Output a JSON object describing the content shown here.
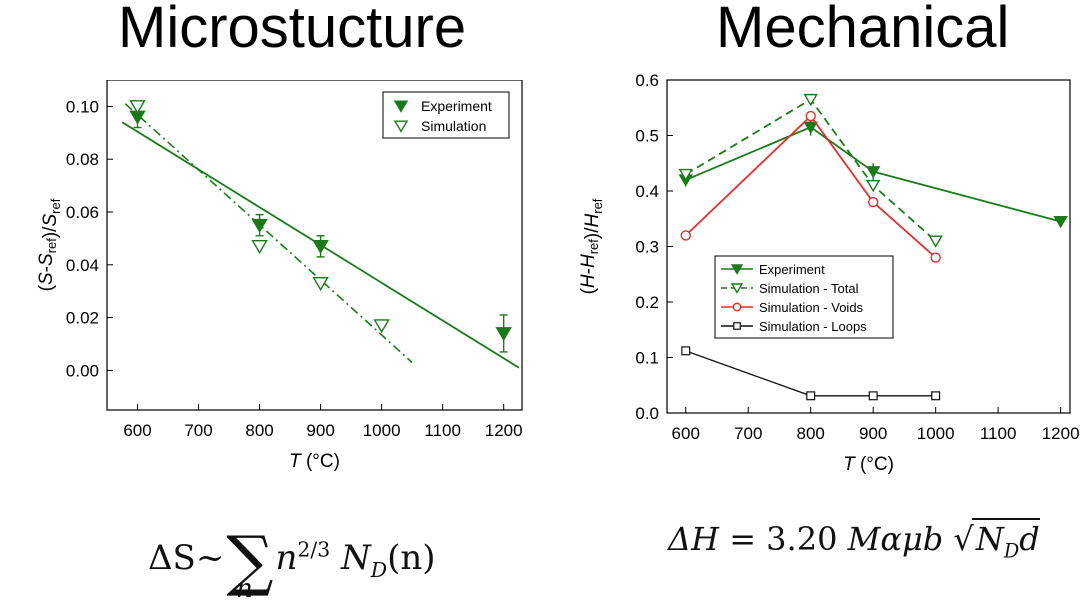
{
  "panels": {
    "left_title": "Microstucture",
    "right_title": "Mechanical"
  },
  "equations": {
    "left": {
      "lhs": "ΔS",
      "sym": "~",
      "sigma": "∑",
      "index": "n",
      "body_n": "n",
      "exp": "2/3",
      "N": "N",
      "sub": "D",
      "arg": "(n)"
    },
    "right": {
      "lhs": "ΔH",
      "eq": "=",
      "coef": "3.20",
      "vars": "Mαμb",
      "root": "√",
      "N": "N",
      "sub": "D",
      "d": "d"
    }
  },
  "colors": {
    "green": "#1a7a1a",
    "red": "#e03030",
    "black": "#111111"
  },
  "chart_data": [
    {
      "type": "scatter",
      "title": "Microstucture",
      "xlabel": "T (°C)",
      "ylabel": "(S-S_ref)/S_ref",
      "xlim": [
        550,
        1230
      ],
      "ylim": [
        -0.015,
        0.11
      ],
      "xticks": [
        600,
        700,
        800,
        900,
        1000,
        1100,
        1200
      ],
      "xtick_labels": [
        "600",
        "700",
        "800",
        "900",
        "1000",
        "1100",
        "1200"
      ],
      "yticks": [
        0.0,
        0.02,
        0.04,
        0.06,
        0.08,
        0.1
      ],
      "ytick_labels": [
        "0.00",
        "0.02",
        "0.04",
        "0.06",
        "0.08",
        "0.10"
      ],
      "legend": {
        "position": "top-right",
        "entries": [
          "Experiment",
          "Simulation"
        ]
      },
      "series": [
        {
          "name": "Experiment",
          "marker": "filled-down-triangle",
          "x": [
            600,
            800,
            900,
            1200
          ],
          "y": [
            0.096,
            0.055,
            0.047,
            0.014
          ],
          "err": [
            0.004,
            0.004,
            0.004,
            0.007
          ]
        },
        {
          "name": "Simulation",
          "marker": "open-down-triangle",
          "x": [
            600,
            800,
            900,
            1000
          ],
          "y": [
            0.1,
            0.047,
            0.033,
            0.017
          ]
        }
      ],
      "fits": [
        {
          "name": "Experiment fit",
          "style": "solid",
          "x": [
            575,
            1225
          ],
          "y": [
            0.094,
            0.001
          ]
        },
        {
          "name": "Simulation fit",
          "style": "dash-dot",
          "x": [
            580,
            1050
          ],
          "y": [
            0.101,
            0.003
          ]
        }
      ]
    },
    {
      "type": "line",
      "title": "Mechanical",
      "xlabel": "T (°C)",
      "ylabel": "(H-H_ref)/H_ref",
      "xlim": [
        570,
        1215
      ],
      "ylim": [
        0.0,
        0.6
      ],
      "xticks": [
        600,
        700,
        800,
        900,
        1000,
        1100,
        1200
      ],
      "xtick_labels": [
        "600",
        "700",
        "800",
        "900",
        "1000",
        "1100",
        "1200"
      ],
      "yticks": [
        0.0,
        0.1,
        0.2,
        0.3,
        0.4,
        0.5,
        0.6
      ],
      "ytick_labels": [
        "0.0",
        "0.1",
        "0.2",
        "0.3",
        "0.4",
        "0.5",
        "0.6"
      ],
      "legend": {
        "position": "lower-left",
        "entries": [
          "Experiment",
          "Simulation - Total",
          "Simulation - Voids",
          "Simulation - Loops"
        ]
      },
      "series": [
        {
          "name": "Experiment",
          "style": "solid",
          "marker": "filled-down-triangle",
          "color": "#1a7a1a",
          "x": [
            600,
            800,
            900,
            1200
          ],
          "y": [
            0.42,
            0.515,
            0.435,
            0.345
          ],
          "err": [
            0.012,
            0.015,
            0.015,
            0.008
          ]
        },
        {
          "name": "Simulation - Total",
          "style": "dashed",
          "marker": "open-down-triangle",
          "color": "#1a7a1a",
          "x": [
            600,
            800,
            900,
            1000
          ],
          "y": [
            0.43,
            0.565,
            0.41,
            0.31
          ]
        },
        {
          "name": "Simulation - Voids",
          "style": "solid",
          "marker": "open-circle",
          "color": "#e03030",
          "x": [
            600,
            800,
            900,
            1000
          ],
          "y": [
            0.32,
            0.535,
            0.38,
            0.28
          ]
        },
        {
          "name": "Simulation - Loops",
          "style": "solid",
          "marker": "open-square",
          "color": "#111111",
          "x": [
            600,
            800,
            900,
            1000
          ],
          "y": [
            0.112,
            0.031,
            0.031,
            0.031
          ]
        }
      ]
    }
  ]
}
